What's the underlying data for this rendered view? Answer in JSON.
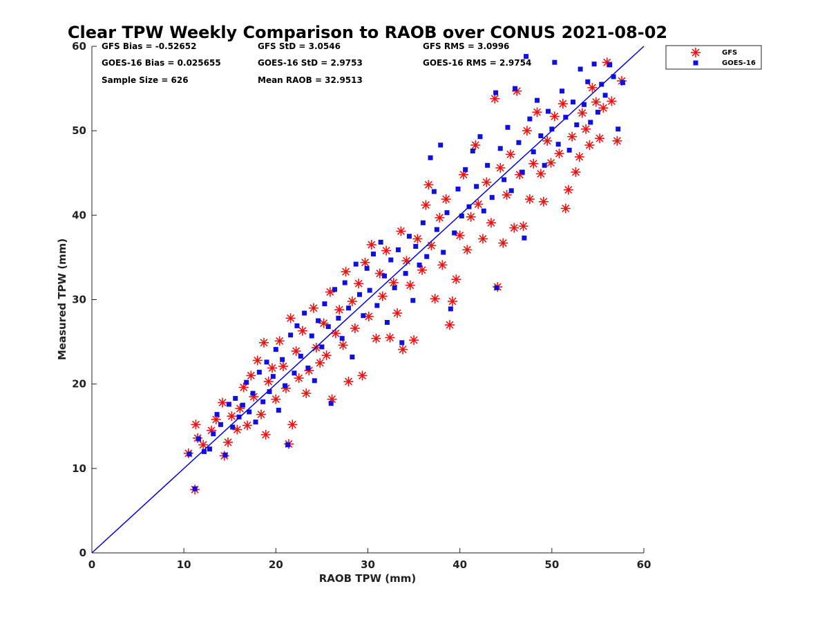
{
  "chart_data": {
    "type": "scatter",
    "title": "Clear TPW Weekly Comparison to RAOB over CONUS 2021-08-02",
    "xlabel": "RAOB TPW (mm)",
    "ylabel": "Measured TPW (mm)",
    "xlim": [
      0,
      60
    ],
    "ylim": [
      0,
      60
    ],
    "xticks": [
      "0",
      "10",
      "20",
      "30",
      "40",
      "50",
      "60"
    ],
    "yticks": [
      "0",
      "10",
      "20",
      "30",
      "40",
      "50",
      "60"
    ],
    "grid": false,
    "legend_position": "outside-top-right",
    "stats": {
      "gfs_bias": "GFS Bias = -0.52652",
      "goes_bias": "GOES-16 Bias = 0.025655",
      "sample_size": "Sample Size = 626",
      "gfs_std": "GFS StD = 3.0546",
      "goes_std": "GOES-16 StD = 2.9753",
      "mean_raob": "Mean RAOB = 32.9513",
      "gfs_rms": "GFS RMS = 3.0996",
      "goes_rms": "GOES-16 RMS = 2.9754"
    },
    "reference_line": {
      "name": "1:1 line",
      "x": [
        0,
        60
      ],
      "y": [
        0,
        60
      ],
      "color": "#0000dd"
    },
    "series": [
      {
        "name": "GFS",
        "marker": "asterisk",
        "color": "#ee1111",
        "points": [
          [
            10.5,
            11.8
          ],
          [
            11.2,
            7.5
          ],
          [
            11.3,
            15.2
          ],
          [
            11.5,
            13.6
          ],
          [
            12.1,
            12.8
          ],
          [
            13.0,
            14.5
          ],
          [
            13.5,
            15.8
          ],
          [
            14.2,
            17.8
          ],
          [
            14.4,
            11.5
          ],
          [
            14.8,
            13.1
          ],
          [
            15.2,
            16.2
          ],
          [
            15.8,
            14.6
          ],
          [
            16.1,
            17.1
          ],
          [
            16.5,
            19.6
          ],
          [
            16.9,
            15.1
          ],
          [
            17.3,
            21.0
          ],
          [
            17.6,
            18.5
          ],
          [
            18.0,
            22.8
          ],
          [
            18.4,
            16.4
          ],
          [
            18.7,
            24.9
          ],
          [
            18.9,
            14.0
          ],
          [
            19.2,
            20.3
          ],
          [
            19.6,
            21.9
          ],
          [
            20.0,
            18.2
          ],
          [
            20.4,
            25.1
          ],
          [
            20.8,
            22.1
          ],
          [
            21.1,
            19.5
          ],
          [
            21.4,
            12.9
          ],
          [
            21.6,
            27.8
          ],
          [
            21.8,
            15.2
          ],
          [
            22.2,
            23.9
          ],
          [
            22.5,
            20.7
          ],
          [
            22.9,
            26.3
          ],
          [
            23.3,
            18.9
          ],
          [
            23.6,
            21.6
          ],
          [
            24.1,
            29.0
          ],
          [
            24.4,
            24.3
          ],
          [
            24.8,
            22.5
          ],
          [
            25.2,
            27.2
          ],
          [
            25.5,
            23.4
          ],
          [
            25.9,
            30.9
          ],
          [
            26.1,
            18.2
          ],
          [
            26.5,
            26.0
          ],
          [
            26.9,
            28.8
          ],
          [
            27.3,
            24.6
          ],
          [
            27.6,
            33.3
          ],
          [
            27.9,
            20.3
          ],
          [
            28.3,
            29.8
          ],
          [
            28.6,
            26.6
          ],
          [
            29.0,
            31.9
          ],
          [
            29.4,
            21.0
          ],
          [
            29.7,
            34.4
          ],
          [
            30.1,
            28.0
          ],
          [
            30.4,
            36.5
          ],
          [
            30.9,
            25.4
          ],
          [
            31.3,
            33.1
          ],
          [
            31.6,
            30.4
          ],
          [
            32.0,
            35.8
          ],
          [
            32.4,
            25.5
          ],
          [
            32.8,
            32.0
          ],
          [
            33.2,
            28.4
          ],
          [
            33.6,
            38.1
          ],
          [
            33.8,
            24.1
          ],
          [
            34.2,
            34.6
          ],
          [
            34.6,
            31.7
          ],
          [
            35.0,
            25.2
          ],
          [
            35.4,
            37.2
          ],
          [
            35.9,
            33.5
          ],
          [
            36.3,
            41.2
          ],
          [
            36.6,
            43.6
          ],
          [
            36.9,
            36.4
          ],
          [
            37.3,
            30.1
          ],
          [
            37.8,
            39.7
          ],
          [
            38.1,
            34.1
          ],
          [
            38.5,
            41.9
          ],
          [
            38.9,
            27.0
          ],
          [
            39.2,
            29.8
          ],
          [
            39.6,
            32.4
          ],
          [
            40.0,
            37.6
          ],
          [
            40.4,
            44.8
          ],
          [
            40.8,
            35.9
          ],
          [
            41.2,
            39.8
          ],
          [
            41.7,
            48.3
          ],
          [
            42.0,
            41.3
          ],
          [
            42.5,
            37.2
          ],
          [
            42.9,
            43.9
          ],
          [
            43.4,
            39.1
          ],
          [
            43.8,
            53.8
          ],
          [
            44.1,
            31.5
          ],
          [
            44.4,
            45.6
          ],
          [
            44.7,
            36.7
          ],
          [
            45.1,
            42.4
          ],
          [
            45.5,
            47.2
          ],
          [
            45.9,
            38.5
          ],
          [
            46.2,
            54.7
          ],
          [
            46.5,
            44.8
          ],
          [
            46.9,
            38.7
          ],
          [
            47.3,
            50.0
          ],
          [
            47.6,
            41.9
          ],
          [
            48.0,
            46.1
          ],
          [
            48.4,
            52.2
          ],
          [
            48.8,
            44.9
          ],
          [
            49.1,
            41.6
          ],
          [
            49.5,
            48.8
          ],
          [
            49.9,
            46.2
          ],
          [
            50.3,
            51.7
          ],
          [
            50.8,
            47.3
          ],
          [
            51.2,
            53.2
          ],
          [
            51.5,
            40.8
          ],
          [
            51.8,
            43.0
          ],
          [
            52.2,
            49.3
          ],
          [
            52.6,
            45.1
          ],
          [
            53.0,
            46.9
          ],
          [
            53.3,
            52.1
          ],
          [
            53.7,
            50.2
          ],
          [
            54.1,
            48.3
          ],
          [
            54.4,
            55.1
          ],
          [
            54.8,
            53.4
          ],
          [
            55.2,
            49.1
          ],
          [
            55.6,
            52.7
          ],
          [
            56.0,
            58.1
          ],
          [
            56.5,
            53.5
          ],
          [
            57.1,
            48.8
          ],
          [
            57.6,
            55.9
          ]
        ]
      },
      {
        "name": "GOES-16",
        "marker": "square",
        "color": "#1010dd",
        "points": [
          [
            10.6,
            11.7
          ],
          [
            11.2,
            7.6
          ],
          [
            11.6,
            13.5
          ],
          [
            12.2,
            12.0
          ],
          [
            12.8,
            12.3
          ],
          [
            13.2,
            14.1
          ],
          [
            13.6,
            16.4
          ],
          [
            14.0,
            15.2
          ],
          [
            14.5,
            11.6
          ],
          [
            14.9,
            17.6
          ],
          [
            15.3,
            14.9
          ],
          [
            15.6,
            18.3
          ],
          [
            16.0,
            16.1
          ],
          [
            16.4,
            17.5
          ],
          [
            16.8,
            20.2
          ],
          [
            17.1,
            16.7
          ],
          [
            17.5,
            18.9
          ],
          [
            17.8,
            15.5
          ],
          [
            18.2,
            21.4
          ],
          [
            18.6,
            17.9
          ],
          [
            19.0,
            22.6
          ],
          [
            19.3,
            19.1
          ],
          [
            19.7,
            20.9
          ],
          [
            20.0,
            24.1
          ],
          [
            20.3,
            16.9
          ],
          [
            20.7,
            22.9
          ],
          [
            21.0,
            19.8
          ],
          [
            21.3,
            12.8
          ],
          [
            21.6,
            25.8
          ],
          [
            22.0,
            21.3
          ],
          [
            22.3,
            26.9
          ],
          [
            22.7,
            23.3
          ],
          [
            23.1,
            28.4
          ],
          [
            23.5,
            21.9
          ],
          [
            23.9,
            25.7
          ],
          [
            24.2,
            20.4
          ],
          [
            24.6,
            27.5
          ],
          [
            25.0,
            24.4
          ],
          [
            25.3,
            29.5
          ],
          [
            25.7,
            26.8
          ],
          [
            26.0,
            17.7
          ],
          [
            26.4,
            31.2
          ],
          [
            26.8,
            27.8
          ],
          [
            27.2,
            25.4
          ],
          [
            27.5,
            32.0
          ],
          [
            27.9,
            29.0
          ],
          [
            28.3,
            23.2
          ],
          [
            28.7,
            34.2
          ],
          [
            29.1,
            30.6
          ],
          [
            29.5,
            28.1
          ],
          [
            29.9,
            33.7
          ],
          [
            30.2,
            31.1
          ],
          [
            30.6,
            35.4
          ],
          [
            31.0,
            29.3
          ],
          [
            31.4,
            36.8
          ],
          [
            31.8,
            32.8
          ],
          [
            32.1,
            27.3
          ],
          [
            32.5,
            34.7
          ],
          [
            32.9,
            31.4
          ],
          [
            33.3,
            35.9
          ],
          [
            33.7,
            24.9
          ],
          [
            34.1,
            33.1
          ],
          [
            34.5,
            37.5
          ],
          [
            34.9,
            29.9
          ],
          [
            35.2,
            36.3
          ],
          [
            35.6,
            34.1
          ],
          [
            36.0,
            39.1
          ],
          [
            36.4,
            35.1
          ],
          [
            36.8,
            46.8
          ],
          [
            37.2,
            42.8
          ],
          [
            37.5,
            38.3
          ],
          [
            37.9,
            48.3
          ],
          [
            38.2,
            35.6
          ],
          [
            38.6,
            40.3
          ],
          [
            39.0,
            28.9
          ],
          [
            39.4,
            37.9
          ],
          [
            39.8,
            43.1
          ],
          [
            40.2,
            39.9
          ],
          [
            40.6,
            45.4
          ],
          [
            41.0,
            41.0
          ],
          [
            41.4,
            47.6
          ],
          [
            41.8,
            43.4
          ],
          [
            42.2,
            49.3
          ],
          [
            42.6,
            40.5
          ],
          [
            43.0,
            45.9
          ],
          [
            43.5,
            42.1
          ],
          [
            43.9,
            54.5
          ],
          [
            44.0,
            31.4
          ],
          [
            44.4,
            47.9
          ],
          [
            44.8,
            44.2
          ],
          [
            45.2,
            50.4
          ],
          [
            45.6,
            42.9
          ],
          [
            46.0,
            55.0
          ],
          [
            46.4,
            48.6
          ],
          [
            46.8,
            45.1
          ],
          [
            47.0,
            37.3
          ],
          [
            47.2,
            58.8
          ],
          [
            47.6,
            51.4
          ],
          [
            48.0,
            47.5
          ],
          [
            48.4,
            53.6
          ],
          [
            48.8,
            49.4
          ],
          [
            49.2,
            45.9
          ],
          [
            49.6,
            52.3
          ],
          [
            50.0,
            50.2
          ],
          [
            50.3,
            58.1
          ],
          [
            50.7,
            48.4
          ],
          [
            51.1,
            54.7
          ],
          [
            51.5,
            51.6
          ],
          [
            51.9,
            47.7
          ],
          [
            52.3,
            53.4
          ],
          [
            52.7,
            50.7
          ],
          [
            53.1,
            57.3
          ],
          [
            53.5,
            53.1
          ],
          [
            53.9,
            55.8
          ],
          [
            54.2,
            51.0
          ],
          [
            54.6,
            57.9
          ],
          [
            55.0,
            52.2
          ],
          [
            55.4,
            55.5
          ],
          [
            55.8,
            54.2
          ],
          [
            56.3,
            57.8
          ],
          [
            56.7,
            56.4
          ],
          [
            57.2,
            50.2
          ],
          [
            57.7,
            55.7
          ]
        ]
      }
    ]
  }
}
